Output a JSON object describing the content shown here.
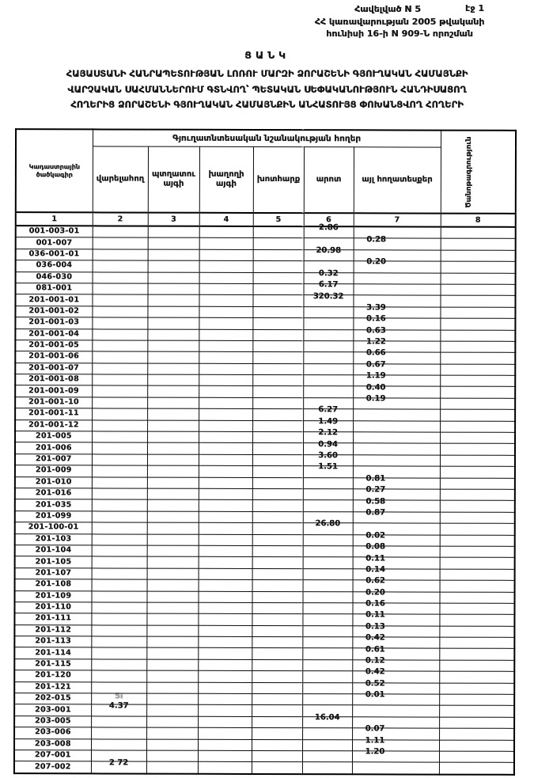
{
  "page": {
    "ink_color": "#151515",
    "paper_color": "#ffffff"
  },
  "header": {
    "appendix": "Հավելված N 5",
    "page_number": "էջ 1",
    "decree_line1": "ՀՀ կառավարության 2005 թվականի",
    "decree_line2": "հունիսի 16-ի N 909-Ն որոշման",
    "title": "ՑԱՆԿ",
    "subtitle_lines": [
      "ՀԱՅԱՍՏԱՆԻ ՀԱՆՐԱՊԵՏՈՒԹՅԱՆ ԼՈՌՈՒ ՄԱՐԶԻ ՁՈՐԱՇԵՆԻ ԳՅՈՒՂԱԿԱՆ ՀԱՄԱՅՆՔԻ",
      "ՎԱՐՉԱԿԱՆ ՍԱՀՄԱՆՆԵՐՈՒՄ ԳՏՆՎՈՂ՝ ՊԵՏԱԿԱՆ ՍԵՓԱԿԱՆՈՒԹՅՈՒՆ ՀԱՆԴԻՍԱՑՈՂ",
      "ՀՈՂԵՐԻՑ ՁՈՐԱՇԵՆԻ ԳՅՈՒՂԱԿԱՆ ՀԱՄԱՅՆՔԻՆ ԱՆՀԱՏՈՒՅՑ ՓՈԽԱՆՑՎՈՂ  ՀՈՂԵՐԻ"
    ]
  },
  "table": {
    "group_header": "Գյուղատնտեսական նշանակության հողեր",
    "columns": [
      {
        "label": "Կադաստրային ծածկագիր",
        "num": "1"
      },
      {
        "label": "վարելահող",
        "num": "2"
      },
      {
        "label": "պտղատու այգի",
        "num": "3"
      },
      {
        "label": "խաղողի այգի",
        "num": "4"
      },
      {
        "label": "խոտհարք",
        "num": "5"
      },
      {
        "label": "արոտ",
        "num": "6"
      },
      {
        "label": "այլ հողատեսքեր",
        "num": "7"
      },
      {
        "label": "Ծանոթագրություն",
        "num": "8"
      }
    ],
    "smudge_cells": [
      [
        41,
        1
      ]
    ],
    "rows": [
      [
        "001-003-01",
        "",
        "",
        "",
        "",
        "2.86",
        "",
        ""
      ],
      [
        "001-007",
        "",
        "",
        "",
        "",
        "",
        "0.28",
        ""
      ],
      [
        "036-001-01",
        "",
        "",
        "",
        "",
        "20.98",
        "",
        ""
      ],
      [
        "036-004",
        "",
        "",
        "",
        "",
        "",
        "0.20",
        ""
      ],
      [
        "046-030",
        "",
        "",
        "",
        "",
        "0.32",
        "",
        ""
      ],
      [
        "081-001",
        "",
        "",
        "",
        "",
        "6.17",
        "",
        ""
      ],
      [
        "201-001-01",
        "",
        "",
        "",
        "",
        "320.32",
        "",
        ""
      ],
      [
        "201-001-02",
        "",
        "",
        "",
        "",
        "",
        "3.39",
        ""
      ],
      [
        "201-001-03",
        "",
        "",
        "",
        "",
        "",
        "0.16",
        ""
      ],
      [
        "201-001-04",
        "",
        "",
        "",
        "",
        "",
        "0.63",
        ""
      ],
      [
        "201-001-05",
        "",
        "",
        "",
        "",
        "",
        "1.22",
        ""
      ],
      [
        "201-001-06",
        "",
        "",
        "",
        "",
        "",
        "0.66",
        ""
      ],
      [
        "201-001-07",
        "",
        "",
        "",
        "",
        "",
        "0.67",
        ""
      ],
      [
        "201-001-08",
        "",
        "",
        "",
        "",
        "",
        "1.19",
        ""
      ],
      [
        "201-001-09",
        "",
        "",
        "",
        "",
        "",
        "0.40",
        ""
      ],
      [
        "201-001-10",
        "",
        "",
        "",
        "",
        "",
        "0.19",
        ""
      ],
      [
        "201-001-11",
        "",
        "",
        "",
        "",
        "6.27",
        "",
        ""
      ],
      [
        "201-001-12",
        "",
        "",
        "",
        "",
        "1.49",
        "",
        ""
      ],
      [
        "201-005",
        "",
        "",
        "",
        "",
        "2.12",
        "",
        ""
      ],
      [
        "201-006",
        "",
        "",
        "",
        "",
        "0.94",
        "",
        ""
      ],
      [
        "201-007",
        "",
        "",
        "",
        "",
        "3.60",
        "",
        ""
      ],
      [
        "201-009",
        "",
        "",
        "",
        "",
        "1.51",
        "",
        ""
      ],
      [
        "201-010",
        "",
        "",
        "",
        "",
        "",
        "0.81",
        ""
      ],
      [
        "201-016",
        "",
        "",
        "",
        "",
        "",
        "0.27",
        ""
      ],
      [
        "201-035",
        "",
        "",
        "",
        "",
        "",
        "0.58",
        ""
      ],
      [
        "201-099",
        "",
        "",
        "",
        "",
        "",
        "0.87",
        ""
      ],
      [
        "201-100-01",
        "",
        "",
        "",
        "",
        "26.80",
        "",
        ""
      ],
      [
        "201-103",
        "",
        "",
        "",
        "",
        "",
        "0.02",
        ""
      ],
      [
        "201-104",
        "",
        "",
        "",
        "",
        "",
        "0.08",
        ""
      ],
      [
        "201-105",
        "",
        "",
        "",
        "",
        "",
        "0.11",
        ""
      ],
      [
        "201-107",
        "",
        "",
        "",
        "",
        "",
        "0.14",
        ""
      ],
      [
        "201-108",
        "",
        "",
        "",
        "",
        "",
        "0.62",
        ""
      ],
      [
        "201-109",
        "",
        "",
        "",
        "",
        "",
        "0.20",
        ""
      ],
      [
        "201-110",
        "",
        "",
        "",
        "",
        "",
        "0.16",
        ""
      ],
      [
        "201-111",
        "",
        "",
        "",
        "",
        "",
        "0.11",
        ""
      ],
      [
        "201-112",
        "",
        "",
        "",
        "",
        "",
        "0.13",
        ""
      ],
      [
        "201-113",
        "",
        "",
        "",
        "",
        "",
        "0.42",
        ""
      ],
      [
        "201-114",
        "",
        "",
        "",
        "",
        "",
        "0.61",
        ""
      ],
      [
        "201-115",
        "",
        "",
        "",
        "",
        "",
        "0.12",
        ""
      ],
      [
        "201-120",
        "",
        "",
        "",
        "",
        "",
        "0.42",
        ""
      ],
      [
        "201-121",
        "",
        "",
        "",
        "",
        "",
        "0.52",
        ""
      ],
      [
        "202-015",
        "5ı",
        "",
        "",
        "",
        "",
        "0.01",
        ""
      ],
      [
        "203-001",
        "4.37",
        "",
        "",
        "",
        "",
        "",
        ""
      ],
      [
        "203-005",
        "",
        "",
        "",
        "",
        "16.04",
        "",
        ""
      ],
      [
        "203-006",
        "",
        "",
        "",
        "",
        "",
        "0.07",
        ""
      ],
      [
        "203-008",
        "",
        "",
        "",
        "",
        "",
        "1.11",
        ""
      ],
      [
        "207-001",
        "",
        "",
        "",
        "",
        "",
        "1.20",
        ""
      ],
      [
        "207-002",
        "2 72",
        "",
        "",
        "",
        "",
        "",
        ""
      ]
    ]
  }
}
